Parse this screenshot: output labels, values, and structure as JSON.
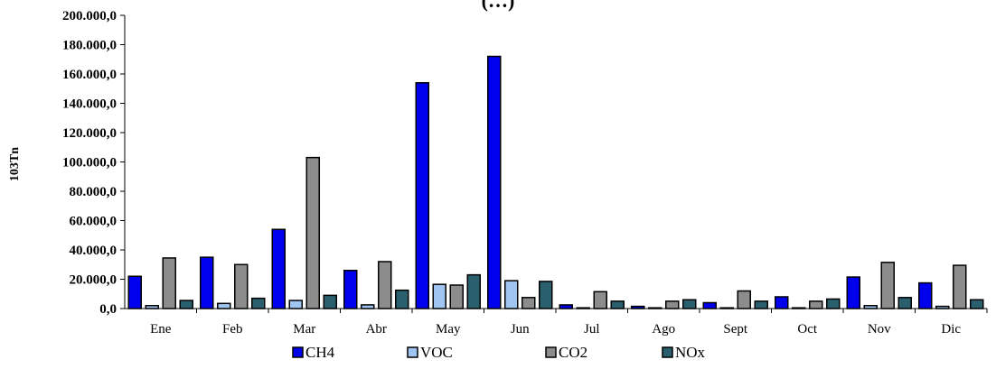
{
  "chart_data": {
    "type": "bar",
    "title": "(…)",
    "ylabel": "103Tn",
    "xlabel": "",
    "ylim": [
      0,
      200000
    ],
    "ytick_values": [
      0,
      20000,
      40000,
      60000,
      80000,
      100000,
      120000,
      140000,
      160000,
      180000,
      200000
    ],
    "ytick_labels": [
      "0,0",
      "20.000,0",
      "40.000,0",
      "60.000,0",
      "80.000,0",
      "100.000,0",
      "120.000,0",
      "140.000,0",
      "160.000,0",
      "180.000,0",
      "200.000,0"
    ],
    "categories": [
      "Ene",
      "Feb",
      "Mar",
      "Abr",
      "May",
      "Jun",
      "Jul",
      "Ago",
      "Sept",
      "Oct",
      "Nov",
      "Dic"
    ],
    "series": [
      {
        "name": "CH4",
        "color": "#0000ee",
        "values": [
          22000,
          35000,
          54000,
          26000,
          154000,
          172000,
          2500,
          1500,
          4000,
          8000,
          21500,
          17500
        ]
      },
      {
        "name": "VOC",
        "color": "#9fc5f0",
        "values": [
          2000,
          3500,
          5500,
          2500,
          16500,
          19000,
          500,
          500,
          500,
          500,
          2000,
          1500
        ]
      },
      {
        "name": "CO2",
        "color": "#8c8c8c",
        "values": [
          34500,
          30000,
          103000,
          32000,
          16000,
          7500,
          11500,
          5000,
          12000,
          5000,
          31500,
          29500
        ]
      },
      {
        "name": "NOx",
        "color": "#2a5f6e",
        "values": [
          5500,
          7000,
          9000,
          12500,
          23000,
          18500,
          5000,
          6000,
          5000,
          6500,
          7500,
          6000
        ]
      }
    ],
    "grid": false,
    "legend_position": "bottom"
  }
}
